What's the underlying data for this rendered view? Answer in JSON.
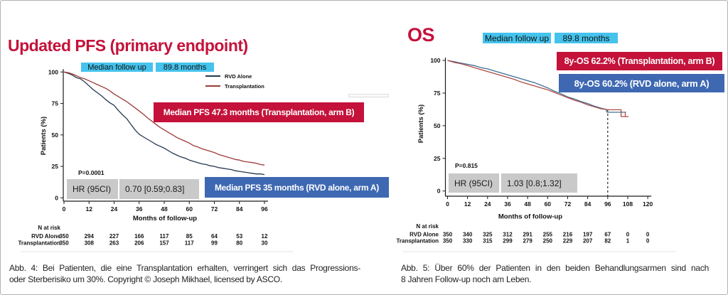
{
  "colors": {
    "crimson": "#c4123a",
    "box_blue": "#3e68b2",
    "cyan": "#45c3ec",
    "gray_box": "#c9c9c9",
    "pfs_line_rvd": "#263850",
    "pfs_line_transplant": "#9d3b38",
    "os_line_rvd": "#3d6e94",
    "os_line_transplant": "#b04a44"
  },
  "pfs": {
    "title": "Updated PFS (primary endpoint)",
    "followup_label": "Median follow up",
    "followup_value": "89.8 months",
    "legend": [
      {
        "label": "RVD Alone"
      },
      {
        "label": "Transplantation"
      }
    ],
    "median_b": "Median PFS  47.3 months (Transplantation, arm B)",
    "median_a": "Median PFS  35 months (RVD alone, arm A)",
    "p_value": "P=0.0001",
    "hr_label": "HR (95CI)",
    "hr_value": "0.70 [0.59;0.83]",
    "caption_lines": [
      "Abb. 4: Bei Patienten, die eine Transplantation erhalten, verringert sich das Progressions-",
      "oder Sterberisiko um 30%. Copyright © Joseph Mikhael, licensed by ASCO."
    ]
  },
  "os": {
    "title": "OS",
    "followup_label": "Median follow up",
    "followup_value": "89.8 months",
    "annotation_b": "8y-OS 62.2% (Transplantation, arm B)",
    "annotation_a": "8y-OS 60.2% (RVD alone, arm A)",
    "p_value": "P=0.815",
    "hr_label": "HR (95CI)",
    "hr_value": "1.03 [0.8;1.32]",
    "caption_lines": [
      "Abb. 5: Über 60% der Patienten in den beiden Behandlungsarmen sind nach",
      "8 Jahren Follow-up noch am Leben."
    ]
  },
  "chart_data": [
    {
      "id": "pfs",
      "type": "line",
      "title": "Updated PFS (primary endpoint)",
      "xlabel": "Months of follow-up",
      "ylabel": "Patients (%)",
      "xlim": [
        0,
        96
      ],
      "ylim": [
        0,
        100
      ],
      "xticks": [
        0,
        12,
        24,
        36,
        48,
        60,
        72,
        84,
        96
      ],
      "yticks": [
        100,
        75,
        50,
        25,
        0
      ],
      "grid": false,
      "legend_position": "top-right",
      "series": [
        {
          "name": "RVD Alone",
          "color": "#263850",
          "points": [
            [
              0,
              100
            ],
            [
              2,
              99
            ],
            [
              4,
              97.5
            ],
            [
              6,
              95.5
            ],
            [
              8,
              94.5
            ],
            [
              10,
              92
            ],
            [
              12,
              89
            ],
            [
              14,
              86
            ],
            [
              16,
              83.5
            ],
            [
              18,
              81
            ],
            [
              20,
              78
            ],
            [
              22,
              75.5
            ],
            [
              24,
              73.5
            ],
            [
              26,
              69.5
            ],
            [
              28,
              66
            ],
            [
              30,
              63
            ],
            [
              32,
              58.5
            ],
            [
              34,
              54
            ],
            [
              36,
              50.5
            ],
            [
              38,
              48.5
            ],
            [
              40,
              46.5
            ],
            [
              42,
              44.5
            ],
            [
              44,
              42.5
            ],
            [
              46,
              41
            ],
            [
              48,
              39.5
            ],
            [
              50,
              37.5
            ],
            [
              52,
              35.5
            ],
            [
              54,
              34
            ],
            [
              56,
              32.5
            ],
            [
              58,
              31.5
            ],
            [
              60,
              30
            ],
            [
              62,
              29
            ],
            [
              64,
              28
            ],
            [
              66,
              27
            ],
            [
              68,
              26.5
            ],
            [
              70,
              25.5
            ],
            [
              72,
              25
            ],
            [
              74,
              24
            ],
            [
              76,
              23.5
            ],
            [
              78,
              23
            ],
            [
              80,
              22.5
            ],
            [
              82,
              21.5
            ],
            [
              84,
              21
            ],
            [
              86,
              20.5
            ],
            [
              88,
              20
            ],
            [
              90,
              19.5
            ],
            [
              92,
              19
            ],
            [
              94,
              19
            ],
            [
              96,
              18.5
            ]
          ]
        },
        {
          "name": "Transplantation",
          "color": "#9d3b38",
          "points": [
            [
              0,
              100
            ],
            [
              2,
              99.5
            ],
            [
              4,
              98.5
            ],
            [
              6,
              97
            ],
            [
              8,
              95.5
            ],
            [
              10,
              94.5
            ],
            [
              12,
              93
            ],
            [
              14,
              91.5
            ],
            [
              16,
              90
            ],
            [
              18,
              88.5
            ],
            [
              20,
              87
            ],
            [
              22,
              85
            ],
            [
              24,
              82.5
            ],
            [
              26,
              80.5
            ],
            [
              28,
              78.5
            ],
            [
              30,
              76.5
            ],
            [
              32,
              74
            ],
            [
              34,
              71.5
            ],
            [
              36,
              69
            ],
            [
              38,
              66.5
            ],
            [
              40,
              63.5
            ],
            [
              42,
              61
            ],
            [
              44,
              58.5
            ],
            [
              46,
              56
            ],
            [
              48,
              54
            ],
            [
              50,
              52
            ],
            [
              52,
              50
            ],
            [
              54,
              48
            ],
            [
              56,
              46.5
            ],
            [
              58,
              45
            ],
            [
              60,
              43.5
            ],
            [
              62,
              41.5
            ],
            [
              64,
              40.5
            ],
            [
              66,
              39
            ],
            [
              68,
              38
            ],
            [
              70,
              37
            ],
            [
              72,
              36
            ],
            [
              74,
              34.5
            ],
            [
              76,
              33.5
            ],
            [
              78,
              32.5
            ],
            [
              80,
              31.5
            ],
            [
              82,
              30.5
            ],
            [
              84,
              30
            ],
            [
              86,
              29
            ],
            [
              88,
              28.5
            ],
            [
              90,
              28
            ],
            [
              92,
              27.5
            ],
            [
              94,
              26.5
            ],
            [
              96,
              26
            ]
          ]
        }
      ],
      "n_at_risk": {
        "title": "N at risk",
        "rows": [
          {
            "label": "RVD Alone",
            "values": [
              350,
              294,
              227,
              166,
              117,
              85,
              64,
              53,
              12
            ]
          },
          {
            "label": "Transplantation",
            "values": [
              350,
              308,
              263,
              206,
              157,
              117,
              99,
              80,
              30
            ]
          }
        ]
      }
    },
    {
      "id": "os",
      "type": "line",
      "title": "OS",
      "xlabel": "Months of follow-up",
      "ylabel": "Patients (%)",
      "xlim": [
        0,
        120
      ],
      "ylim": [
        0,
        100
      ],
      "xticks": [
        0,
        12,
        24,
        36,
        48,
        60,
        72,
        84,
        96,
        108,
        120
      ],
      "yticks": [
        100,
        75,
        50,
        25,
        0
      ],
      "grid": false,
      "dashed_line_x": 96,
      "censor_marks": [
        {
          "series": "Transplantation",
          "x": 106.5,
          "y1": 57,
          "y2": 60.5
        }
      ],
      "series": [
        {
          "name": "RVD Alone",
          "color": "#3d6e94",
          "points": [
            [
              0,
              100
            ],
            [
              4,
              99
            ],
            [
              8,
              98
            ],
            [
              12,
              97
            ],
            [
              16,
              96
            ],
            [
              20,
              94.5
            ],
            [
              24,
              93.5
            ],
            [
              28,
              92
            ],
            [
              32,
              90.5
            ],
            [
              36,
              89
            ],
            [
              40,
              87.5
            ],
            [
              44,
              86
            ],
            [
              48,
              84.5
            ],
            [
              52,
              83
            ],
            [
              56,
              81
            ],
            [
              60,
              79
            ],
            [
              64,
              76.5
            ],
            [
              68,
              74.5
            ],
            [
              72,
              72
            ],
            [
              76,
              70.5
            ],
            [
              80,
              68.5
            ],
            [
              84,
              67
            ],
            [
              88,
              65
            ],
            [
              92,
              63.5
            ],
            [
              95,
              62.5
            ],
            [
              95.5,
              60.3
            ],
            [
              107,
              60.3
            ]
          ]
        },
        {
          "name": "Transplantation",
          "color": "#b04a44",
          "points": [
            [
              0,
              100
            ],
            [
              4,
              98.5
            ],
            [
              8,
              97.5
            ],
            [
              12,
              96
            ],
            [
              16,
              94.5
            ],
            [
              20,
              93
            ],
            [
              24,
              91.5
            ],
            [
              28,
              90
            ],
            [
              32,
              88.5
            ],
            [
              36,
              87
            ],
            [
              40,
              85.5
            ],
            [
              44,
              83.5
            ],
            [
              48,
              82
            ],
            [
              52,
              80.5
            ],
            [
              56,
              79
            ],
            [
              60,
              77.5
            ],
            [
              64,
              75.5
            ],
            [
              68,
              73.5
            ],
            [
              72,
              71.5
            ],
            [
              76,
              69.5
            ],
            [
              80,
              68
            ],
            [
              84,
              66
            ],
            [
              88,
              64.5
            ],
            [
              92,
              63
            ],
            [
              96,
              62.2
            ],
            [
              104,
              62.2
            ],
            [
              104,
              57
            ],
            [
              108.5,
              57
            ]
          ]
        }
      ],
      "n_at_risk": {
        "title": "N at risk",
        "rows": [
          {
            "label": "RVD Alone",
            "values": [
              350,
              340,
              325,
              312,
              291,
              255,
              216,
              197,
              67,
              0,
              0
            ]
          },
          {
            "label": "Transplantation",
            "values": [
              350,
              330,
              315,
              299,
              279,
              250,
              229,
              207,
              82,
              1,
              0
            ]
          }
        ]
      }
    }
  ]
}
